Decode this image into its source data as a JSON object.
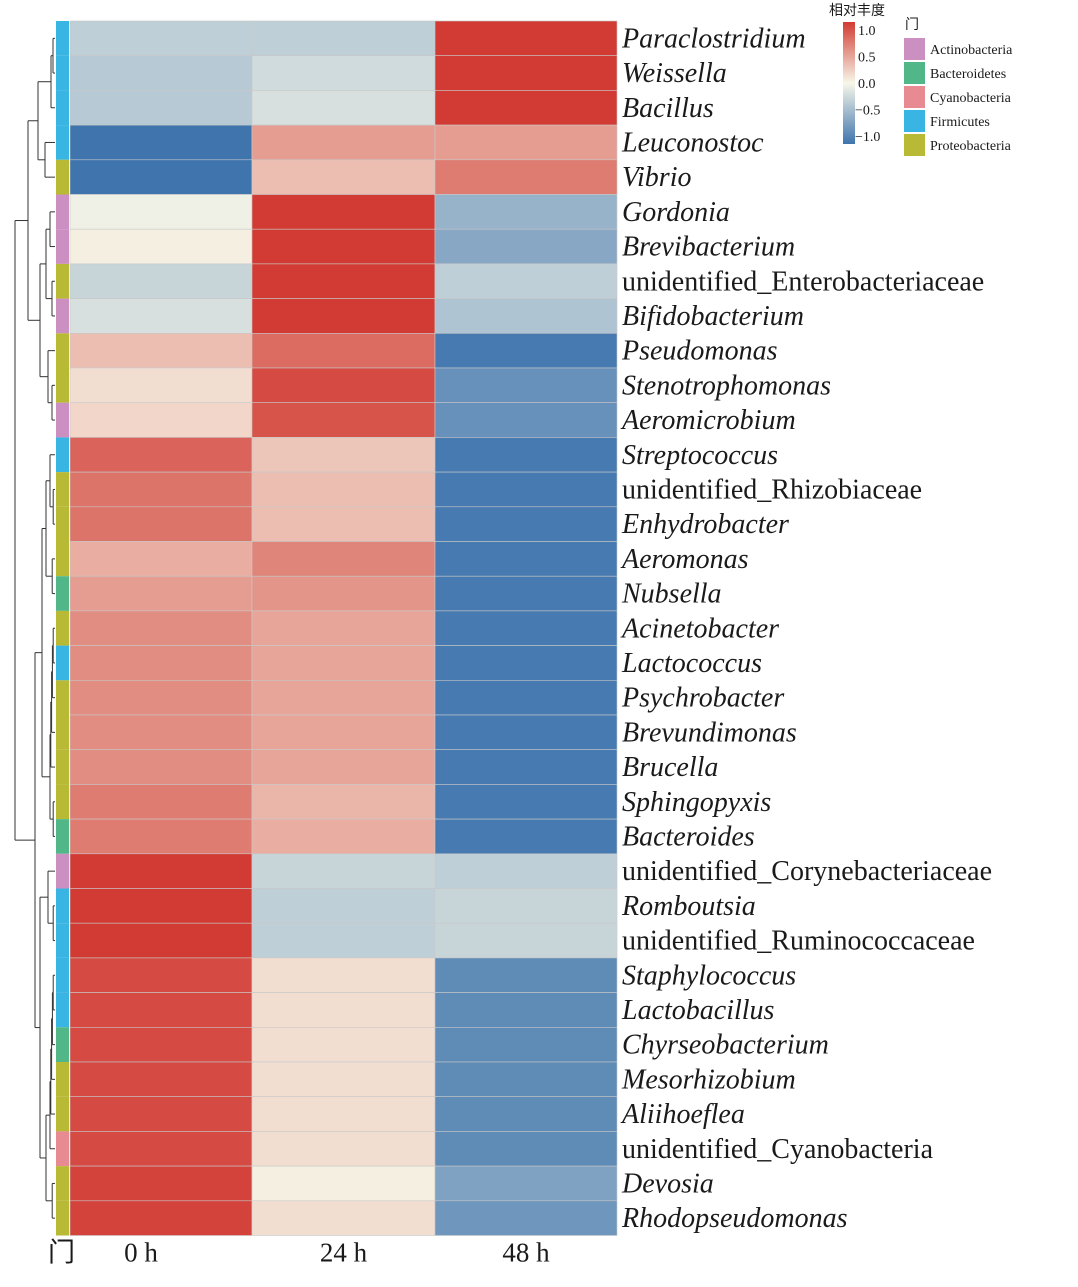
{
  "chart_data": {
    "type": "heatmap",
    "title": "",
    "columns": [
      "0 h",
      "24 h",
      "48 h"
    ],
    "annotation_label": "门",
    "colorbar": {
      "title": "相对丰度",
      "ticks": [
        "1.0",
        "0.5",
        "0.0",
        "−0.5",
        "−1.0"
      ],
      "tick_values": [
        1.0,
        0.5,
        0.0,
        -0.5,
        -1.0
      ],
      "range": [
        -1.15,
        1.15
      ],
      "colors": {
        "low": "#3f74ad",
        "mid": "#f7f7e9",
        "high": "#d23b33"
      }
    },
    "phylum_legend": [
      {
        "name": "Actinobacteria",
        "color": "#cc8fc2"
      },
      {
        "name": "Bacteroidetes",
        "color": "#52b788"
      },
      {
        "name": "Cyanobacteria",
        "color": "#e88a92"
      },
      {
        "name": "Firmicutes",
        "color": "#38b5e2"
      },
      {
        "name": "Proteobacteria",
        "color": "#b8b934"
      }
    ],
    "rows": [
      {
        "label": "Paraclostridium",
        "italic": true,
        "phylum": "Firmicutes",
        "values": [
          -0.35,
          -0.35,
          1.15
        ]
      },
      {
        "label": "Weissella",
        "italic": true,
        "phylum": "Firmicutes",
        "values": [
          -0.4,
          -0.25,
          1.15
        ]
      },
      {
        "label": "Bacillus",
        "italic": true,
        "phylum": "Firmicutes",
        "values": [
          -0.4,
          -0.2,
          1.15
        ]
      },
      {
        "label": "Leuconostoc",
        "italic": true,
        "phylum": "Firmicutes",
        "values": [
          -1.15,
          0.55,
          0.55
        ]
      },
      {
        "label": "Vibrio",
        "italic": true,
        "phylum": "Proteobacteria",
        "values": [
          -1.15,
          0.35,
          0.75
        ]
      },
      {
        "label": "Gordonia",
        "italic": true,
        "phylum": "Actinobacteria",
        "values": [
          -0.05,
          1.15,
          -0.6
        ]
      },
      {
        "label": "Brevibacterium",
        "italic": true,
        "phylum": "Actinobacteria",
        "values": [
          0.05,
          1.15,
          -0.7
        ]
      },
      {
        "label": "unidentified_Enterobacteriaceae",
        "italic": false,
        "phylum": "Proteobacteria",
        "values": [
          -0.3,
          1.15,
          -0.35
        ]
      },
      {
        "label": "Bifidobacterium",
        "italic": true,
        "phylum": "Actinobacteria",
        "values": [
          -0.2,
          1.15,
          -0.45
        ]
      },
      {
        "label": "Pseudomonas",
        "italic": true,
        "phylum": "Proteobacteria",
        "values": [
          0.35,
          0.85,
          -1.1
        ]
      },
      {
        "label": "Stenotrophomonas",
        "italic": true,
        "phylum": "Proteobacteria",
        "values": [
          0.15,
          1.05,
          -0.9
        ]
      },
      {
        "label": "Aeromicrobium",
        "italic": true,
        "phylum": "Actinobacteria",
        "values": [
          0.2,
          1.0,
          -0.9
        ]
      },
      {
        "label": "Streptococcus",
        "italic": true,
        "phylum": "Firmicutes",
        "values": [
          0.9,
          0.3,
          -1.1
        ]
      },
      {
        "label": "unidentified_Rhizobiaceae",
        "italic": false,
        "phylum": "Proteobacteria",
        "values": [
          0.8,
          0.35,
          -1.1
        ]
      },
      {
        "label": "Enhydrobacter",
        "italic": true,
        "phylum": "Proteobacteria",
        "values": [
          0.8,
          0.35,
          -1.1
        ]
      },
      {
        "label": "Aeromonas",
        "italic": true,
        "phylum": "Proteobacteria",
        "values": [
          0.45,
          0.7,
          -1.1
        ]
      },
      {
        "label": "Nubsella",
        "italic": true,
        "phylum": "Bacteroidetes",
        "values": [
          0.55,
          0.6,
          -1.1
        ]
      },
      {
        "label": "Acinetobacter",
        "italic": true,
        "phylum": "Proteobacteria",
        "values": [
          0.65,
          0.5,
          -1.1
        ]
      },
      {
        "label": "Lactococcus",
        "italic": true,
        "phylum": "Firmicutes",
        "values": [
          0.65,
          0.5,
          -1.1
        ]
      },
      {
        "label": "Psychrobacter",
        "italic": true,
        "phylum": "Proteobacteria",
        "values": [
          0.65,
          0.5,
          -1.1
        ]
      },
      {
        "label": "Brevundimonas",
        "italic": true,
        "phylum": "Proteobacteria",
        "values": [
          0.65,
          0.5,
          -1.1
        ]
      },
      {
        "label": "Brucella",
        "italic": true,
        "phylum": "Proteobacteria",
        "values": [
          0.65,
          0.5,
          -1.1
        ]
      },
      {
        "label": "Sphingopyxis",
        "italic": true,
        "phylum": "Proteobacteria",
        "values": [
          0.75,
          0.4,
          -1.1
        ]
      },
      {
        "label": "Bacteroides",
        "italic": true,
        "phylum": "Bacteroidetes",
        "values": [
          0.75,
          0.45,
          -1.1
        ]
      },
      {
        "label": "unidentified_Corynebacteriaceae",
        "italic": false,
        "phylum": "Actinobacteria",
        "values": [
          1.15,
          -0.3,
          -0.35
        ]
      },
      {
        "label": "Romboutsia",
        "italic": true,
        "phylum": "Firmicutes",
        "values": [
          1.15,
          -0.35,
          -0.3
        ]
      },
      {
        "label": "unidentified_Ruminococcaceae",
        "italic": false,
        "phylum": "Firmicutes",
        "values": [
          1.15,
          -0.35,
          -0.3
        ]
      },
      {
        "label": "Staphylococcus",
        "italic": true,
        "phylum": "Firmicutes",
        "values": [
          1.05,
          0.15,
          -0.95
        ]
      },
      {
        "label": "Lactobacillus",
        "italic": true,
        "phylum": "Firmicutes",
        "values": [
          1.05,
          0.15,
          -0.95
        ]
      },
      {
        "label": "Chyrseobacterium",
        "italic": true,
        "phylum": "Bacteroidetes",
        "values": [
          1.05,
          0.15,
          -0.95
        ]
      },
      {
        "label": "Mesorhizobium",
        "italic": true,
        "phylum": "Proteobacteria",
        "values": [
          1.05,
          0.15,
          -0.95
        ]
      },
      {
        "label": "Aliihoeflea",
        "italic": true,
        "phylum": "Proteobacteria",
        "values": [
          1.05,
          0.15,
          -0.95
        ]
      },
      {
        "label": "unidentified_Cyanobacteria",
        "italic": false,
        "phylum": "Cyanobacteria",
        "values": [
          1.05,
          0.15,
          -0.95
        ]
      },
      {
        "label": "Devosia",
        "italic": true,
        "phylum": "Proteobacteria",
        "values": [
          1.1,
          0.05,
          -0.75
        ]
      },
      {
        "label": "Rhodopseudomonas",
        "italic": true,
        "phylum": "Proteobacteria",
        "values": [
          1.1,
          0.15,
          -0.85
        ]
      }
    ]
  }
}
